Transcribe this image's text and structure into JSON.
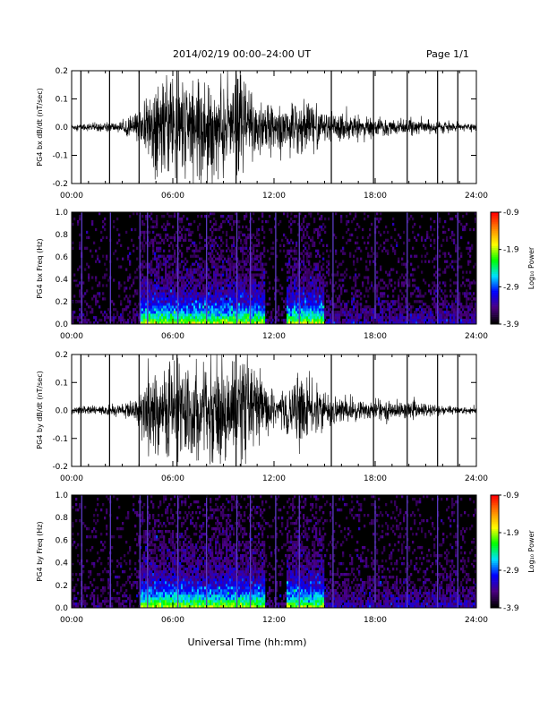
{
  "header": {
    "title": "2014/02/19  00:00–24:00 UT",
    "page": "Page 1/1"
  },
  "xlabel": "Universal Time (hh:mm)",
  "time_ticks": [
    "00:00",
    "06:00",
    "12:00",
    "18:00",
    "24:00"
  ],
  "colorbar": {
    "label": "Log₁₀ Power",
    "ticks": [
      "-0.9",
      "-1.9",
      "-2.9",
      "-3.9"
    ],
    "range": [
      -3.9,
      -0.9
    ],
    "colors": [
      "#000000",
      "#4b0082",
      "#0000ff",
      "#00e0ff",
      "#00ff00",
      "#ffff00",
      "#ff8800",
      "#ff0000"
    ]
  },
  "chart_data": [
    {
      "type": "line",
      "ylabel": "PG4 bx dB/dt (nT/sec)",
      "xlim": [
        0,
        24
      ],
      "ylim": [
        -0.2,
        0.2
      ],
      "yticks": [
        "0.2",
        "0.1",
        "0.0",
        "-0.1",
        "-0.2"
      ],
      "x_unit": "hours UT",
      "envelope": {
        "hours": [
          0,
          1,
          2,
          3,
          4,
          4.5,
          5,
          6,
          7,
          7.5,
          8,
          9,
          9.5,
          10,
          11,
          12,
          13,
          13.5,
          14,
          14.5,
          15,
          16,
          17,
          18,
          19,
          20,
          21,
          22,
          23,
          24
        ],
        "amplitude": [
          0.012,
          0.014,
          0.016,
          0.02,
          0.06,
          0.13,
          0.16,
          0.2,
          0.18,
          0.16,
          0.2,
          0.2,
          0.15,
          0.2,
          0.14,
          0.07,
          0.09,
          0.12,
          0.11,
          0.09,
          0.06,
          0.05,
          0.04,
          0.035,
          0.03,
          0.03,
          0.025,
          0.02,
          0.015,
          0.012
        ]
      },
      "spikes_hours": [
        0.55,
        2.25,
        4.0,
        6.25,
        9.75,
        15.4,
        17.9,
        19.9,
        21.7,
        22.9
      ]
    },
    {
      "type": "heatmap",
      "ylabel": "PG4 bx Freq (Hz)",
      "xlim": [
        0,
        24
      ],
      "ylim": [
        0.0,
        1.0
      ],
      "yticks": [
        "1.0",
        "0.8",
        "0.6",
        "0.4",
        "0.2",
        "0.0"
      ],
      "zlim": [
        -3.9,
        -0.9
      ],
      "z_label": "Log₁₀ Power",
      "active_hours": [
        [
          4.0,
          11.5
        ],
        [
          12.7,
          15.0
        ]
      ],
      "vertical_lines_hours": [
        0.6,
        2.3,
        4.05,
        4.5,
        6.3,
        8.0,
        9.8,
        10.6,
        12.1,
        13.5,
        15.5,
        18.0,
        19.9,
        21.7,
        22.9
      ]
    },
    {
      "type": "line",
      "ylabel": "PG4 by dB/dt (nT/sec)",
      "xlim": [
        0,
        24
      ],
      "ylim": [
        -0.2,
        0.2
      ],
      "yticks": [
        "0.2",
        "0.1",
        "0.0",
        "-0.1",
        "-0.2"
      ],
      "x_unit": "hours UT",
      "envelope": {
        "hours": [
          0,
          1,
          2,
          3,
          4,
          4.5,
          5,
          6,
          7,
          7.5,
          8,
          9,
          9.5,
          10,
          11,
          12,
          13,
          13.5,
          14,
          14.5,
          15,
          16,
          17,
          18,
          19,
          20,
          21,
          22,
          23,
          24
        ],
        "amplitude": [
          0.012,
          0.016,
          0.018,
          0.022,
          0.06,
          0.14,
          0.16,
          0.2,
          0.18,
          0.17,
          0.2,
          0.2,
          0.16,
          0.2,
          0.14,
          0.07,
          0.1,
          0.13,
          0.12,
          0.09,
          0.06,
          0.05,
          0.045,
          0.04,
          0.035,
          0.03,
          0.025,
          0.02,
          0.015,
          0.012
        ]
      },
      "spikes_hours": [
        0.55,
        2.25,
        4.0,
        6.25,
        9.75,
        15.4,
        17.9,
        19.9,
        21.7,
        22.9
      ]
    },
    {
      "type": "heatmap",
      "ylabel": "PG4 by Freq (Hz)",
      "xlim": [
        0,
        24
      ],
      "ylim": [
        0.0,
        1.0
      ],
      "yticks": [
        "1.0",
        "0.8",
        "0.6",
        "0.4",
        "0.2",
        "0.0"
      ],
      "zlim": [
        -3.9,
        -0.9
      ],
      "z_label": "Log₁₀ Power",
      "active_hours": [
        [
          4.0,
          11.5
        ],
        [
          12.7,
          15.0
        ]
      ],
      "vertical_lines_hours": [
        0.6,
        2.3,
        4.05,
        4.5,
        6.3,
        8.0,
        9.8,
        10.6,
        12.1,
        13.5,
        15.5,
        18.0,
        19.9,
        21.7,
        22.9
      ]
    }
  ]
}
